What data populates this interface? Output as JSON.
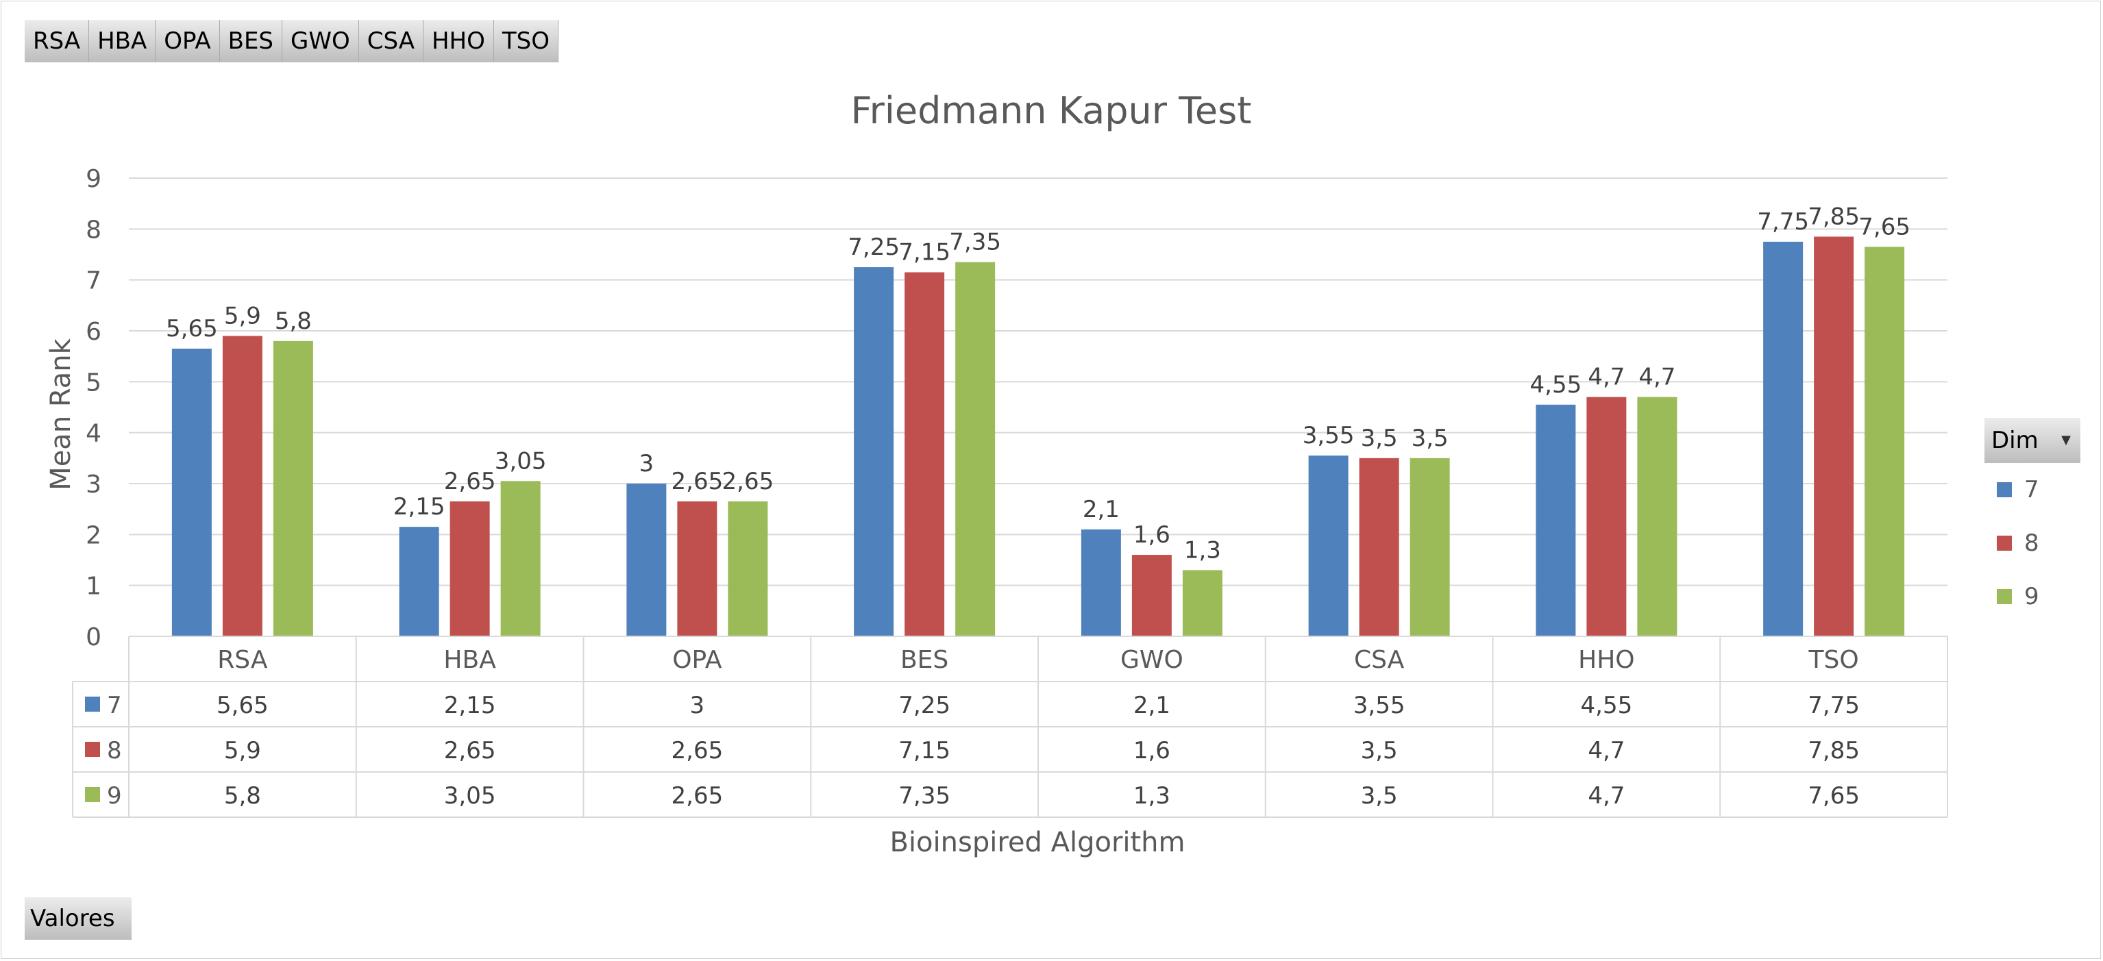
{
  "pivot": {
    "field_buttons": [
      "RSA",
      "HBA",
      "OPA",
      "BES",
      "GWO",
      "CSA",
      "HHO",
      "TSO"
    ],
    "values_button": "Valores",
    "legend_title": "Dim"
  },
  "colors": {
    "7": "#4f81bd",
    "8": "#c0504d",
    "9": "#9bbb59"
  },
  "chart_data": {
    "type": "bar",
    "title": "Friedmann Kapur Test",
    "xlabel": "Bioinspired Algorithm",
    "ylabel": "Mean Rank",
    "ylim": [
      0,
      9
    ],
    "yticks": [
      "0",
      "1",
      "2",
      "3",
      "4",
      "5",
      "6",
      "7",
      "8",
      "9"
    ],
    "grid": true,
    "legend_position": "right",
    "data_table": true,
    "categories": [
      "RSA",
      "HBA",
      "OPA",
      "BES",
      "GWO",
      "CSA",
      "HHO",
      "TSO"
    ],
    "series": [
      {
        "name": "7",
        "values": [
          5.65,
          2.15,
          3,
          7.25,
          2.1,
          3.55,
          4.55,
          7.75
        ],
        "labels": [
          "5,65",
          "2,15",
          "3",
          "7,25",
          "2,1",
          "3,55",
          "4,55",
          "7,75"
        ]
      },
      {
        "name": "8",
        "values": [
          5.9,
          2.65,
          2.65,
          7.15,
          1.6,
          3.5,
          4.7,
          7.85
        ],
        "labels": [
          "5,9",
          "2,65",
          "2,65",
          "7,15",
          "1,6",
          "3,5",
          "4,7",
          "7,85"
        ]
      },
      {
        "name": "9",
        "values": [
          5.8,
          3.05,
          2.65,
          7.35,
          1.3,
          3.5,
          4.7,
          7.65
        ],
        "labels": [
          "5,8",
          "3,05",
          "2,65",
          "7,35",
          "1,3",
          "3,5",
          "4,7",
          "7,65"
        ]
      }
    ]
  }
}
